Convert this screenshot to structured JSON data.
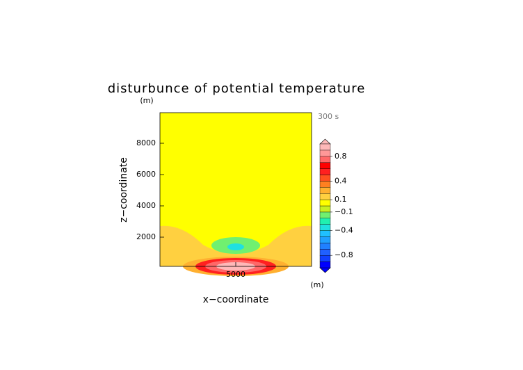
{
  "chart_data": {
    "type": "contour",
    "title": "disturbunce of potential temperature",
    "x_label": "x−coordinate",
    "y_label": "z−coordinate",
    "x_unit": "(m)",
    "y_unit": "(m)",
    "time_label": "300 s",
    "xlim": [
      0,
      10000
    ],
    "ylim": [
      0,
      10000
    ],
    "xticks": [
      5000
    ],
    "yticks": [
      2000,
      4000,
      6000,
      8000
    ],
    "colorbar": {
      "levels": [
        -1,
        -0.9,
        -0.8,
        -0.7,
        -0.6,
        -0.5,
        -0.4,
        -0.3,
        -0.2,
        -0.1,
        0,
        0.1,
        0.2,
        0.3,
        0.4,
        0.5,
        0.6,
        0.7,
        0.8,
        0.9,
        1
      ],
      "colors": [
        "#0000ff",
        "#1040ff",
        "#2060ff",
        "#2080ff",
        "#20a0ff",
        "#20c0ff",
        "#20e0e0",
        "#20f0b0",
        "#70f070",
        "#c8f020",
        "#ffff00",
        "#ffd040",
        "#ffb030",
        "#ff8020",
        "#ff5020",
        "#ff2020",
        "#ff0000",
        "#ff6868",
        "#ff9898",
        "#ffb8b8"
      ],
      "ticks": [
        0.8,
        0.4,
        0.1,
        {
          "value": -0.1,
          "label": "−0.1"
        },
        {
          "value": -0.4,
          "label": "−0.4"
        },
        {
          "value": -0.8,
          "label": "−0.8"
        }
      ]
    }
  }
}
